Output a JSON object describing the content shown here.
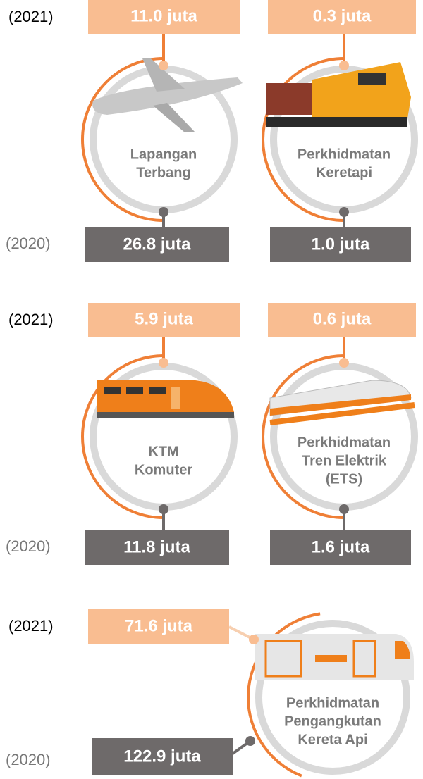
{
  "rows": [
    {
      "year_top": "(2021)",
      "year_bottom": "(2020)",
      "items": [
        {
          "label": [
            "Lapangan",
            "Terbang"
          ],
          "value_2021": "11.0 juta",
          "value_2020": "26.8 juta"
        },
        {
          "label": [
            "Perkhidmatan",
            "Keretapi"
          ],
          "value_2021": "0.3 juta",
          "value_2020": "1.0 juta"
        }
      ]
    },
    {
      "year_top": "(2021)",
      "year_bottom": "(2020)",
      "items": [
        {
          "label": [
            "KTM",
            "Komuter"
          ],
          "value_2021": "5.9 juta",
          "value_2020": "11.8 juta"
        },
        {
          "label": [
            "Perkhidmatan",
            "Tren Elektrik",
            "(ETS)"
          ],
          "value_2021": "0.6 juta",
          "value_2020": "1.6 juta"
        }
      ]
    },
    {
      "year_top": "(2021)",
      "year_bottom": "(2020)",
      "items": [
        {
          "label": [
            "Perkhidmatan",
            "Pengangkutan",
            "Kereta Api"
          ],
          "value_2021": "71.6 juta",
          "value_2020": "122.9 juta"
        }
      ]
    }
  ]
}
